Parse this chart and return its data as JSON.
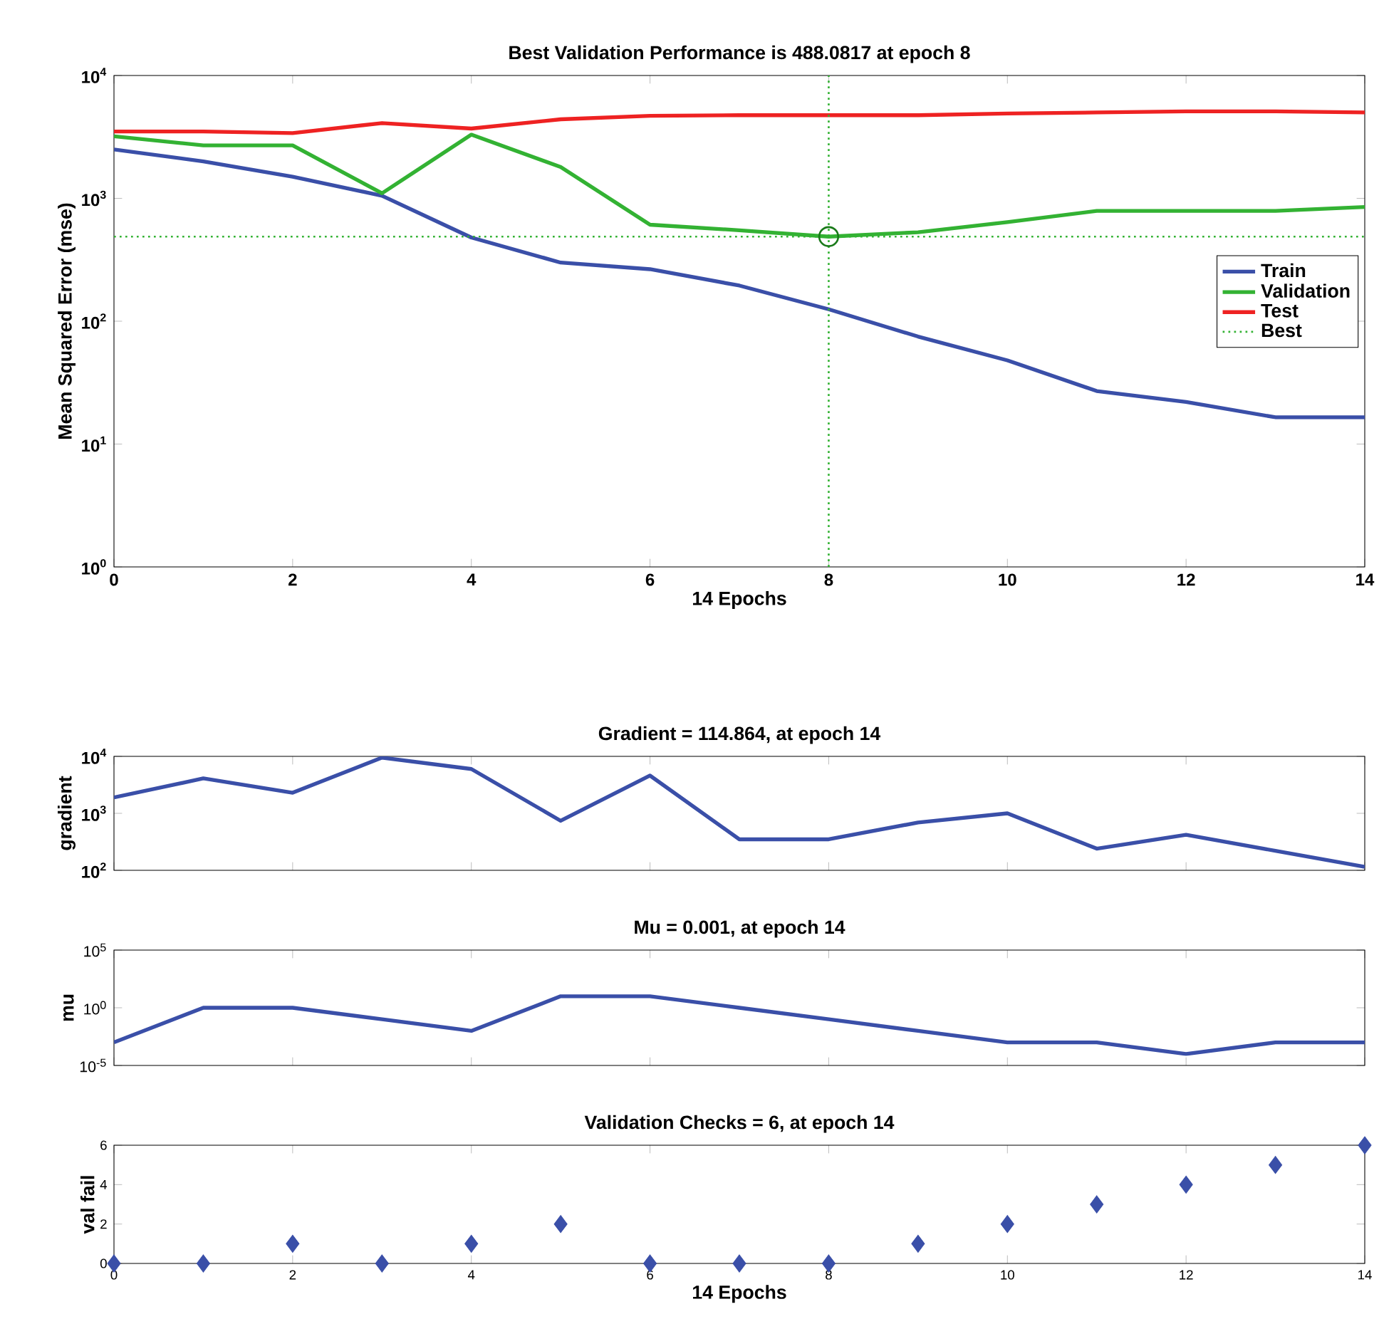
{
  "chart_data": [
    {
      "type": "line",
      "title": "Best Validation Performance is 488.0817 at epoch 8",
      "xlabel": "14 Epochs",
      "ylabel": "Mean Squared Error (mse)",
      "log": "y",
      "legend": "right",
      "x": [
        0,
        1,
        2,
        3,
        4,
        5,
        6,
        7,
        8,
        9,
        10,
        11,
        12,
        13,
        14
      ],
      "xlim": [
        0,
        14
      ],
      "xticks": [
        0,
        2,
        4,
        6,
        8,
        10,
        12,
        14
      ],
      "ylim": [
        1,
        10000
      ],
      "yticks": [
        {
          "value": 1,
          "label": "10$^{0}$"
        },
        {
          "value": 10,
          "label": "10$^{1}$"
        },
        {
          "value": 100,
          "label": "10$^{2}$"
        },
        {
          "value": 1000,
          "label": "10$^{3}$"
        },
        {
          "value": 10000,
          "label": "10$^{4}$"
        }
      ],
      "series": [
        {
          "name": "Train",
          "color": "#3a4fa8",
          "values": [
            2500,
            2000,
            1500,
            1050,
            480,
            300,
            265,
            195,
            125,
            75,
            48,
            27,
            22,
            16.5,
            16.5
          ]
        },
        {
          "name": "Validation",
          "color": "#33b233",
          "values": [
            3200,
            2700,
            2700,
            1100,
            3300,
            1800,
            610,
            550,
            488.0817,
            530,
            640,
            790,
            790,
            790,
            850
          ]
        },
        {
          "name": "Test",
          "color": "#ee2222",
          "values": [
            3500,
            3500,
            3400,
            4100,
            3700,
            4400,
            4700,
            4750,
            4750,
            4750,
            4900,
            5000,
            5100,
            5100,
            5000
          ]
        },
        {
          "type": "scatter",
          "marker": "circle",
          "color": "#1a7a1a",
          "x": [
            8
          ],
          "values": [
            488.0817
          ]
        }
      ],
      "ref_lines": [
        {
          "axis": "y",
          "value": 488.0817,
          "label": "Best",
          "color": "#33b233",
          "line_style": "dotted"
        },
        {
          "axis": "x",
          "value": 8,
          "color": "#33b233",
          "line_style": "dotted"
        }
      ]
    },
    {
      "type": "line",
      "title": "Gradient = 114.864, at epoch 14",
      "ylabel": "gradient",
      "log": "y",
      "tick_labels": "y",
      "x": [
        0,
        1,
        2,
        3,
        4,
        5,
        6,
        7,
        8,
        9,
        10,
        11,
        12,
        13,
        14
      ],
      "xlim": [
        0,
        14
      ],
      "xticks": [
        0,
        2,
        4,
        6,
        8,
        10,
        12,
        14
      ],
      "ylim": [
        100,
        10000
      ],
      "yticks": [
        {
          "value": 100,
          "label": "10$^{2}$"
        },
        {
          "value": 1000,
          "label": "10$^{3}$"
        },
        {
          "value": 10000,
          "label": "10$^{4}$"
        }
      ],
      "series": [
        {
          "color": "#3a4fa8",
          "values": [
            1900,
            4100,
            2300,
            9500,
            6000,
            740,
            4600,
            350,
            350,
            690,
            1000,
            240,
            420,
            220,
            114.864
          ]
        }
      ]
    },
    {
      "type": "line",
      "title": "Mu = 0.001, at epoch 14",
      "ylabel": "mu",
      "log": "y",
      "tick_labels": "y",
      "x": [
        0,
        1,
        2,
        3,
        4,
        5,
        6,
        7,
        8,
        9,
        10,
        11,
        12,
        13,
        14
      ],
      "xlim": [
        0,
        14
      ],
      "xticks": [
        0,
        2,
        4,
        6,
        8,
        10,
        12,
        14
      ],
      "ylim": [
        1e-05,
        100000
      ],
      "yticks": [
        {
          "value": 1e-05,
          "label": "10$^{-5}$"
        },
        {
          "value": 1,
          "label": "10$^{0}$"
        },
        {
          "value": 100000,
          "label": "10$^{5}$"
        }
      ],
      "series": [
        {
          "color": "#3a4fa8",
          "values": [
            0.001,
            1,
            1,
            0.1,
            0.01,
            10,
            10,
            1,
            0.1,
            0.01,
            0.001,
            0.001,
            0.0001,
            0.001,
            0.001
          ]
        }
      ]
    },
    {
      "type": "scatter",
      "title": "Validation Checks = 6, at epoch 14",
      "xlabel": "14 Epochs",
      "ylabel": "val fail",
      "marker": "diamond",
      "x": [
        0,
        1,
        2,
        3,
        4,
        5,
        6,
        7,
        8,
        9,
        10,
        11,
        12,
        13,
        14
      ],
      "xlim": [
        0,
        14
      ],
      "xticks": [
        0,
        2,
        4,
        6,
        8,
        10,
        12,
        14
      ],
      "ylim": [
        0,
        6
      ],
      "yticks": [
        0,
        2,
        4,
        6
      ],
      "series": [
        {
          "color": "#3a4fa8",
          "values": [
            0,
            0,
            1,
            0,
            1,
            2,
            0,
            0,
            0,
            1,
            2,
            3,
            4,
            5,
            6
          ]
        }
      ]
    }
  ]
}
